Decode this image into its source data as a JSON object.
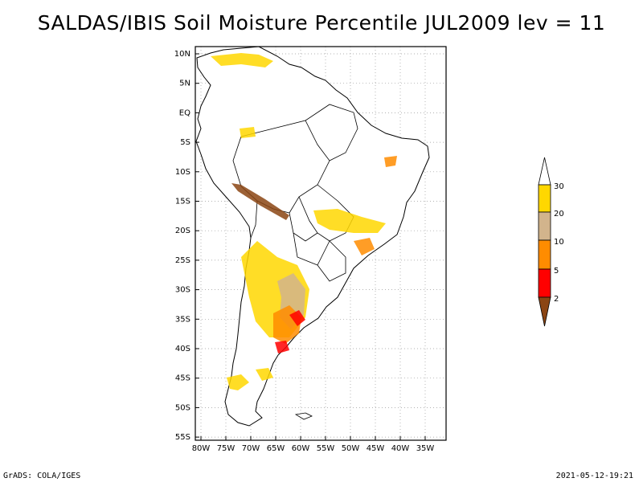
{
  "title": "SALDAS/IBIS Soil Moisture Percentile JUL2009 lev = 11",
  "footer": {
    "left": "GrADS: COLA/IGES",
    "right": "2021-05-12-19:21"
  },
  "map": {
    "lat_labels": [
      "10N",
      "5N",
      "EQ",
      "5S",
      "10S",
      "15S",
      "20S",
      "25S",
      "30S",
      "35S",
      "40S",
      "45S",
      "50S",
      "55S"
    ],
    "lon_labels": [
      "80W",
      "75W",
      "70W",
      "65W",
      "60W",
      "55W",
      "50W",
      "45W",
      "40W",
      "35W"
    ]
  },
  "legend": {
    "labels": [
      "2",
      "5",
      "10",
      "20",
      "30"
    ],
    "colors": [
      "#8B4513",
      "#FF0000",
      "#FF8C00",
      "#D2B48C",
      "#FFD700",
      "#FFFFFF"
    ]
  }
}
